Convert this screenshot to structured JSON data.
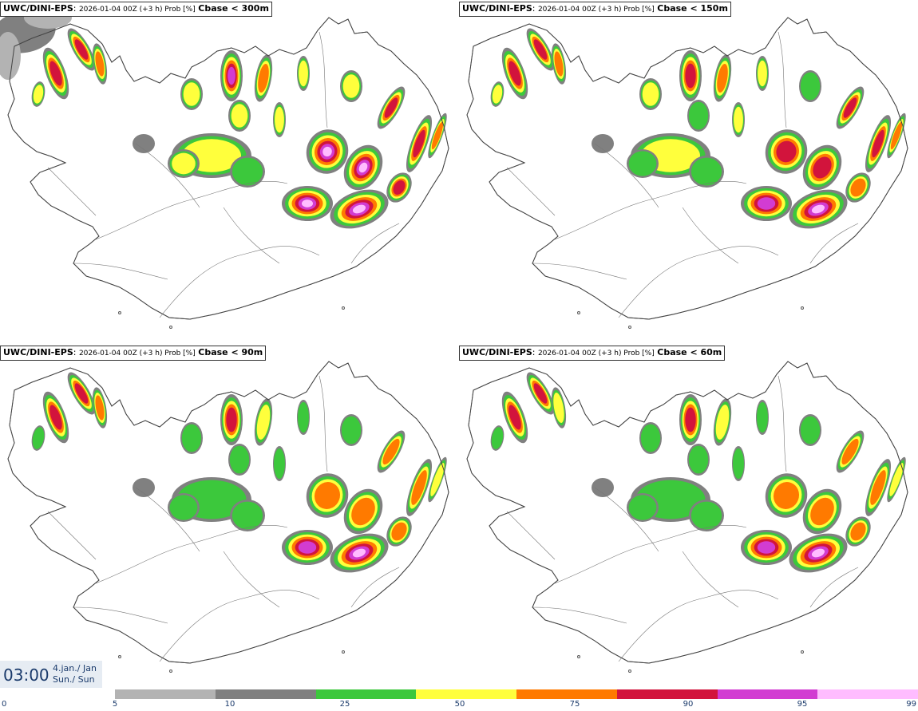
{
  "panels": [
    {
      "source": "UWC/DINI-EPS",
      "meta": "2026-01-04 00Z (+3 h) Prob [%]",
      "variable": "Cbase < 300m"
    },
    {
      "source": "UWC/DINI-EPS",
      "meta": "2026-01-04 00Z (+3 h) Prob [%]",
      "variable": "Cbase < 150m"
    },
    {
      "source": "UWC/DINI-EPS",
      "meta": "2026-01-04 00Z (+3 h) Prob [%]",
      "variable": "Cbase < 90m"
    },
    {
      "source": "UWC/DINI-EPS",
      "meta": "2026-01-04 00Z (+3 h) Prob [%]",
      "variable": "Cbase < 60m"
    }
  ],
  "time": {
    "label": "03:00",
    "date_line1": "4.jan./ Jan",
    "date_line2": "Sun./ Sun"
  },
  "legend": {
    "ticks": [
      "0",
      "5",
      "10",
      "25",
      "50",
      "75",
      "90",
      "95",
      "99"
    ],
    "colors": [
      "#b3b3b3",
      "#808080",
      "#3cc83c",
      "#ffff3c",
      "#ff7a00",
      "#d2143c",
      "#d23cd2",
      "#ffbcff"
    ]
  }
}
